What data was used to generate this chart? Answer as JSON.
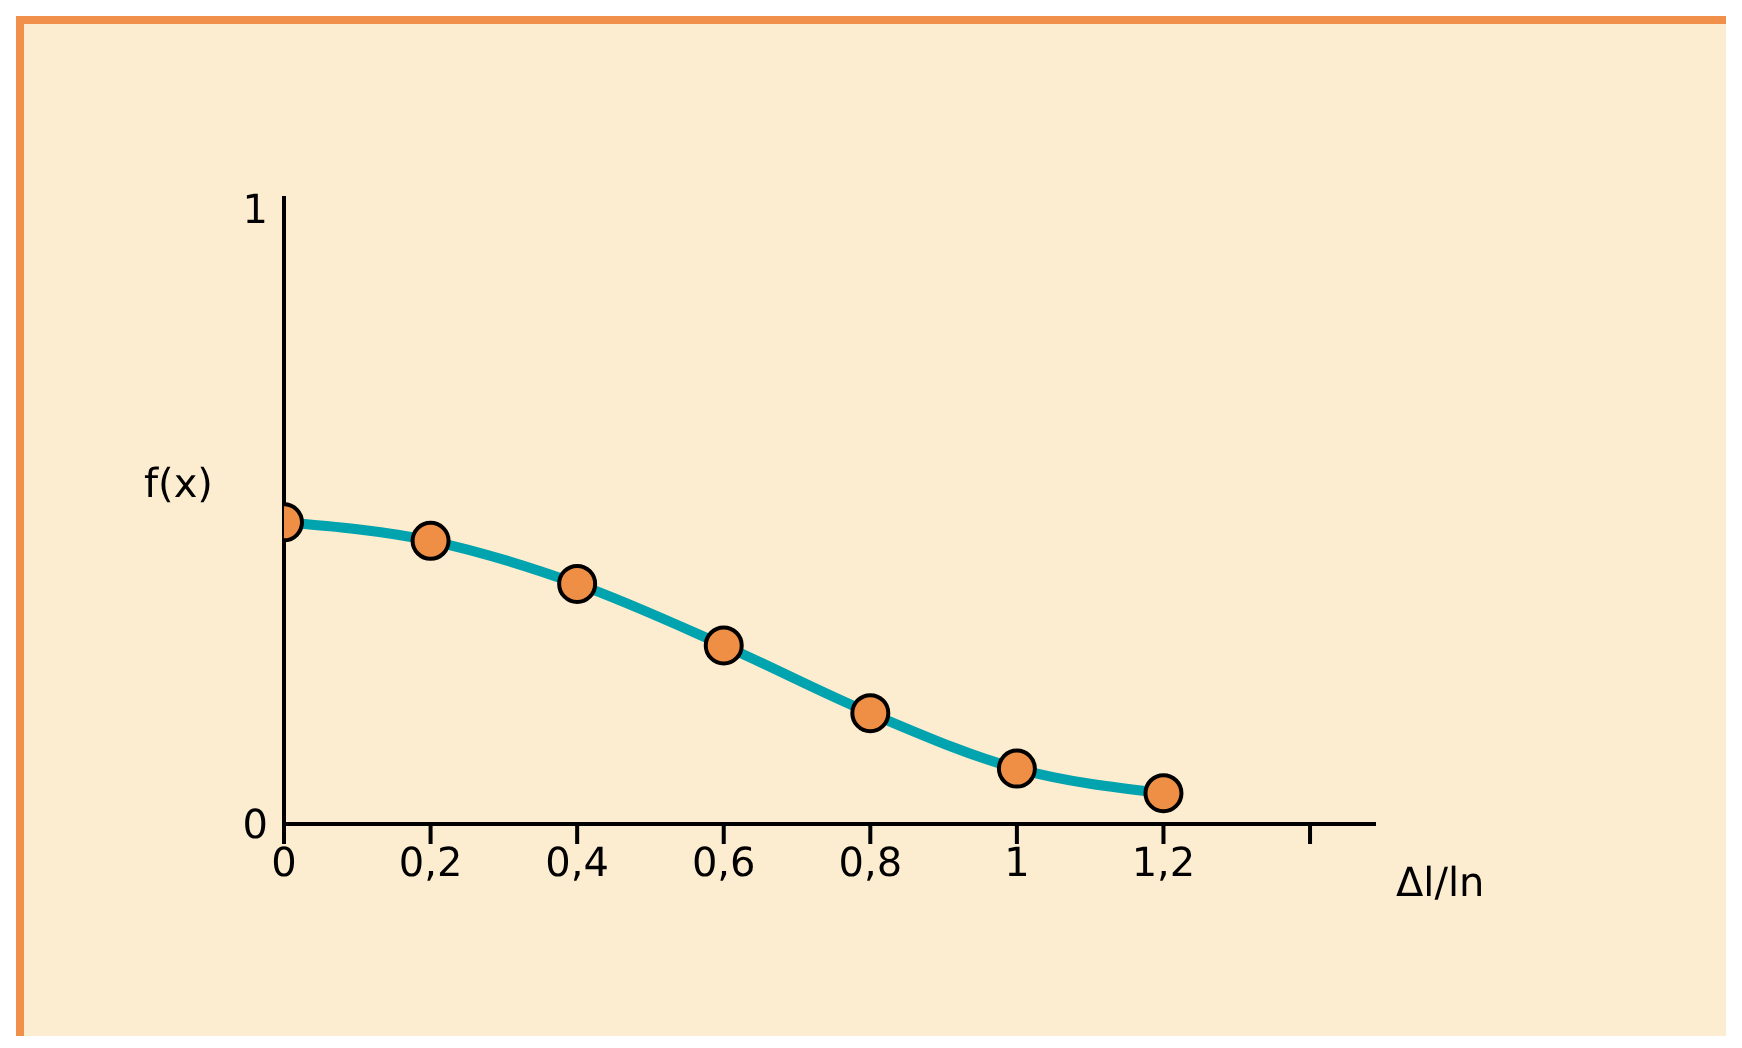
{
  "chart_data": {
    "type": "line",
    "xlabel": "Δl/ln",
    "ylabel": "f(x)",
    "x": [
      0,
      0.2,
      0.4,
      0.6,
      0.8,
      1,
      1.2
    ],
    "series": [
      {
        "color": "#00a3ae",
        "values": [
          0.49,
          0.46,
          0.39,
          0.29,
          0.18,
          0.09,
          0.05
        ]
      }
    ],
    "xlim": [
      0,
      1.49
    ],
    "xticks": [
      {
        "value": 0,
        "label": "0"
      },
      {
        "value": 0.2,
        "label": "0,2"
      },
      {
        "value": 0.4,
        "label": "0,4"
      },
      {
        "value": 0.6,
        "label": "0,6"
      },
      {
        "value": 0.8,
        "label": "0,8"
      },
      {
        "value": 1,
        "label": "1"
      },
      {
        "value": 1.2,
        "label": "1,2"
      },
      {
        "value": 1.4,
        "label": null
      }
    ],
    "ylim": [
      0,
      1.02
    ],
    "yticks": [
      0,
      1
    ],
    "marker": "circle",
    "line_style": "solid"
  }
}
